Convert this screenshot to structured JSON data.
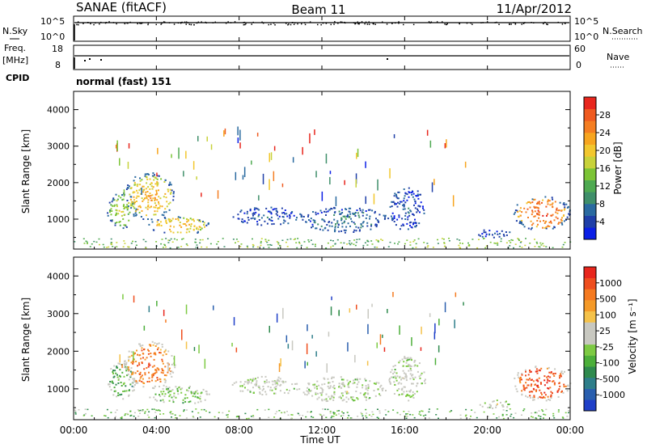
{
  "header": {
    "station": "SANAE (fitACF)",
    "beam": "Beam 11",
    "date": "11/Apr/2012"
  },
  "summary": {
    "nsky_label": "N.Sky",
    "nsky_ticks": [
      "10^5",
      "10^0"
    ],
    "nsearch_label": "N.Search",
    "freq_label": "Freq.",
    "freq_unit": "[MHz]",
    "freq_ticks": [
      "18",
      "8"
    ],
    "nave_label": "Nave",
    "nave_ticks": [
      "60",
      "0"
    ],
    "cpid_label": "CPID",
    "cpid_value": "normal (fast) 151"
  },
  "x_axis": {
    "label": "Time UT",
    "ticks": [
      "00:00",
      "04:00",
      "08:00",
      "12:00",
      "16:00",
      "20:00",
      "00:00"
    ]
  },
  "colorbars": {
    "power": {
      "label": "Power [dB]",
      "ticks": [
        "28",
        "24",
        "20",
        "16",
        "12",
        "8",
        "4"
      ],
      "colors": [
        "#0b1fe6",
        "#1f3fa8",
        "#2a6aa0",
        "#3f8f6a",
        "#4faa52",
        "#7cc436",
        "#c8d23a",
        "#f2c72e",
        "#f7a51f",
        "#f57e22",
        "#ef5a1f",
        "#e8261d"
      ]
    },
    "velocity": {
      "label": "Velocity [m s⁻¹]",
      "ticks": [
        "1000",
        "500",
        "100",
        "25",
        "-25",
        "-100",
        "-500",
        "-1000"
      ],
      "colors": [
        "#1f3fc8",
        "#2a5fae",
        "#2e7e8a",
        "#2f8a4e",
        "#4caf3a",
        "#7dca43",
        "#c8c8c0",
        "#c8c8c0",
        "#f5c24a",
        "#f59a28",
        "#f57a20",
        "#ef4e1e",
        "#e8261d"
      ]
    }
  },
  "chart_data": [
    {
      "type": "heatmap",
      "title": "Power",
      "xlabel": "Time UT",
      "ylabel": "Slant Range [km]",
      "xlim": [
        0,
        24
      ],
      "ylim": [
        180,
        4500
      ],
      "y_ticks": [
        1000,
        2000,
        3000,
        4000
      ],
      "colorbar": "Power [dB]",
      "regions": [
        {
          "t0": 1.6,
          "t1": 3.0,
          "r0": 750,
          "r1": 1750,
          "level": 5
        },
        {
          "t0": 2.4,
          "t1": 4.9,
          "r0": 1000,
          "r1": 2300,
          "level": 7
        },
        {
          "t0": 3.6,
          "t1": 6.6,
          "r0": 600,
          "r1": 1100,
          "level": 7
        },
        {
          "t0": 7.6,
          "t1": 11.0,
          "r0": 850,
          "r1": 1350,
          "level": 1
        },
        {
          "t0": 11.0,
          "t1": 15.2,
          "r0": 650,
          "r1": 1350,
          "level": 2
        },
        {
          "t0": 15.2,
          "t1": 17.0,
          "r0": 700,
          "r1": 1900,
          "level": 1
        },
        {
          "t0": 19.5,
          "t1": 21.2,
          "r0": 500,
          "r1": 750,
          "level": 1
        },
        {
          "t0": 21.2,
          "t1": 24.0,
          "r0": 700,
          "r1": 1650,
          "level": 9
        }
      ]
    },
    {
      "type": "heatmap",
      "title": "Velocity",
      "xlabel": "Time UT",
      "ylabel": "Slant Range [km]",
      "xlim": [
        0,
        24
      ],
      "ylim": [
        180,
        4500
      ],
      "y_ticks": [
        1000,
        2000,
        3000,
        4000
      ],
      "colorbar": "Velocity [m s⁻¹]",
      "regions": [
        {
          "t0": 1.6,
          "t1": 3.0,
          "r0": 750,
          "r1": 1750,
          "level": 4
        },
        {
          "t0": 2.4,
          "t1": 4.9,
          "r0": 1000,
          "r1": 2300,
          "level": 10
        },
        {
          "t0": 3.6,
          "t1": 6.6,
          "r0": 600,
          "r1": 1100,
          "level": 5
        },
        {
          "t0": 7.6,
          "t1": 11.0,
          "r0": 850,
          "r1": 1350,
          "level": 6
        },
        {
          "t0": 11.0,
          "t1": 15.2,
          "r0": 650,
          "r1": 1350,
          "level": 6
        },
        {
          "t0": 15.2,
          "t1": 17.0,
          "r0": 700,
          "r1": 1900,
          "level": 6
        },
        {
          "t0": 19.5,
          "t1": 21.2,
          "r0": 500,
          "r1": 750,
          "level": 6
        },
        {
          "t0": 21.2,
          "t1": 24.0,
          "r0": 700,
          "r1": 1650,
          "level": 11
        }
      ]
    }
  ]
}
